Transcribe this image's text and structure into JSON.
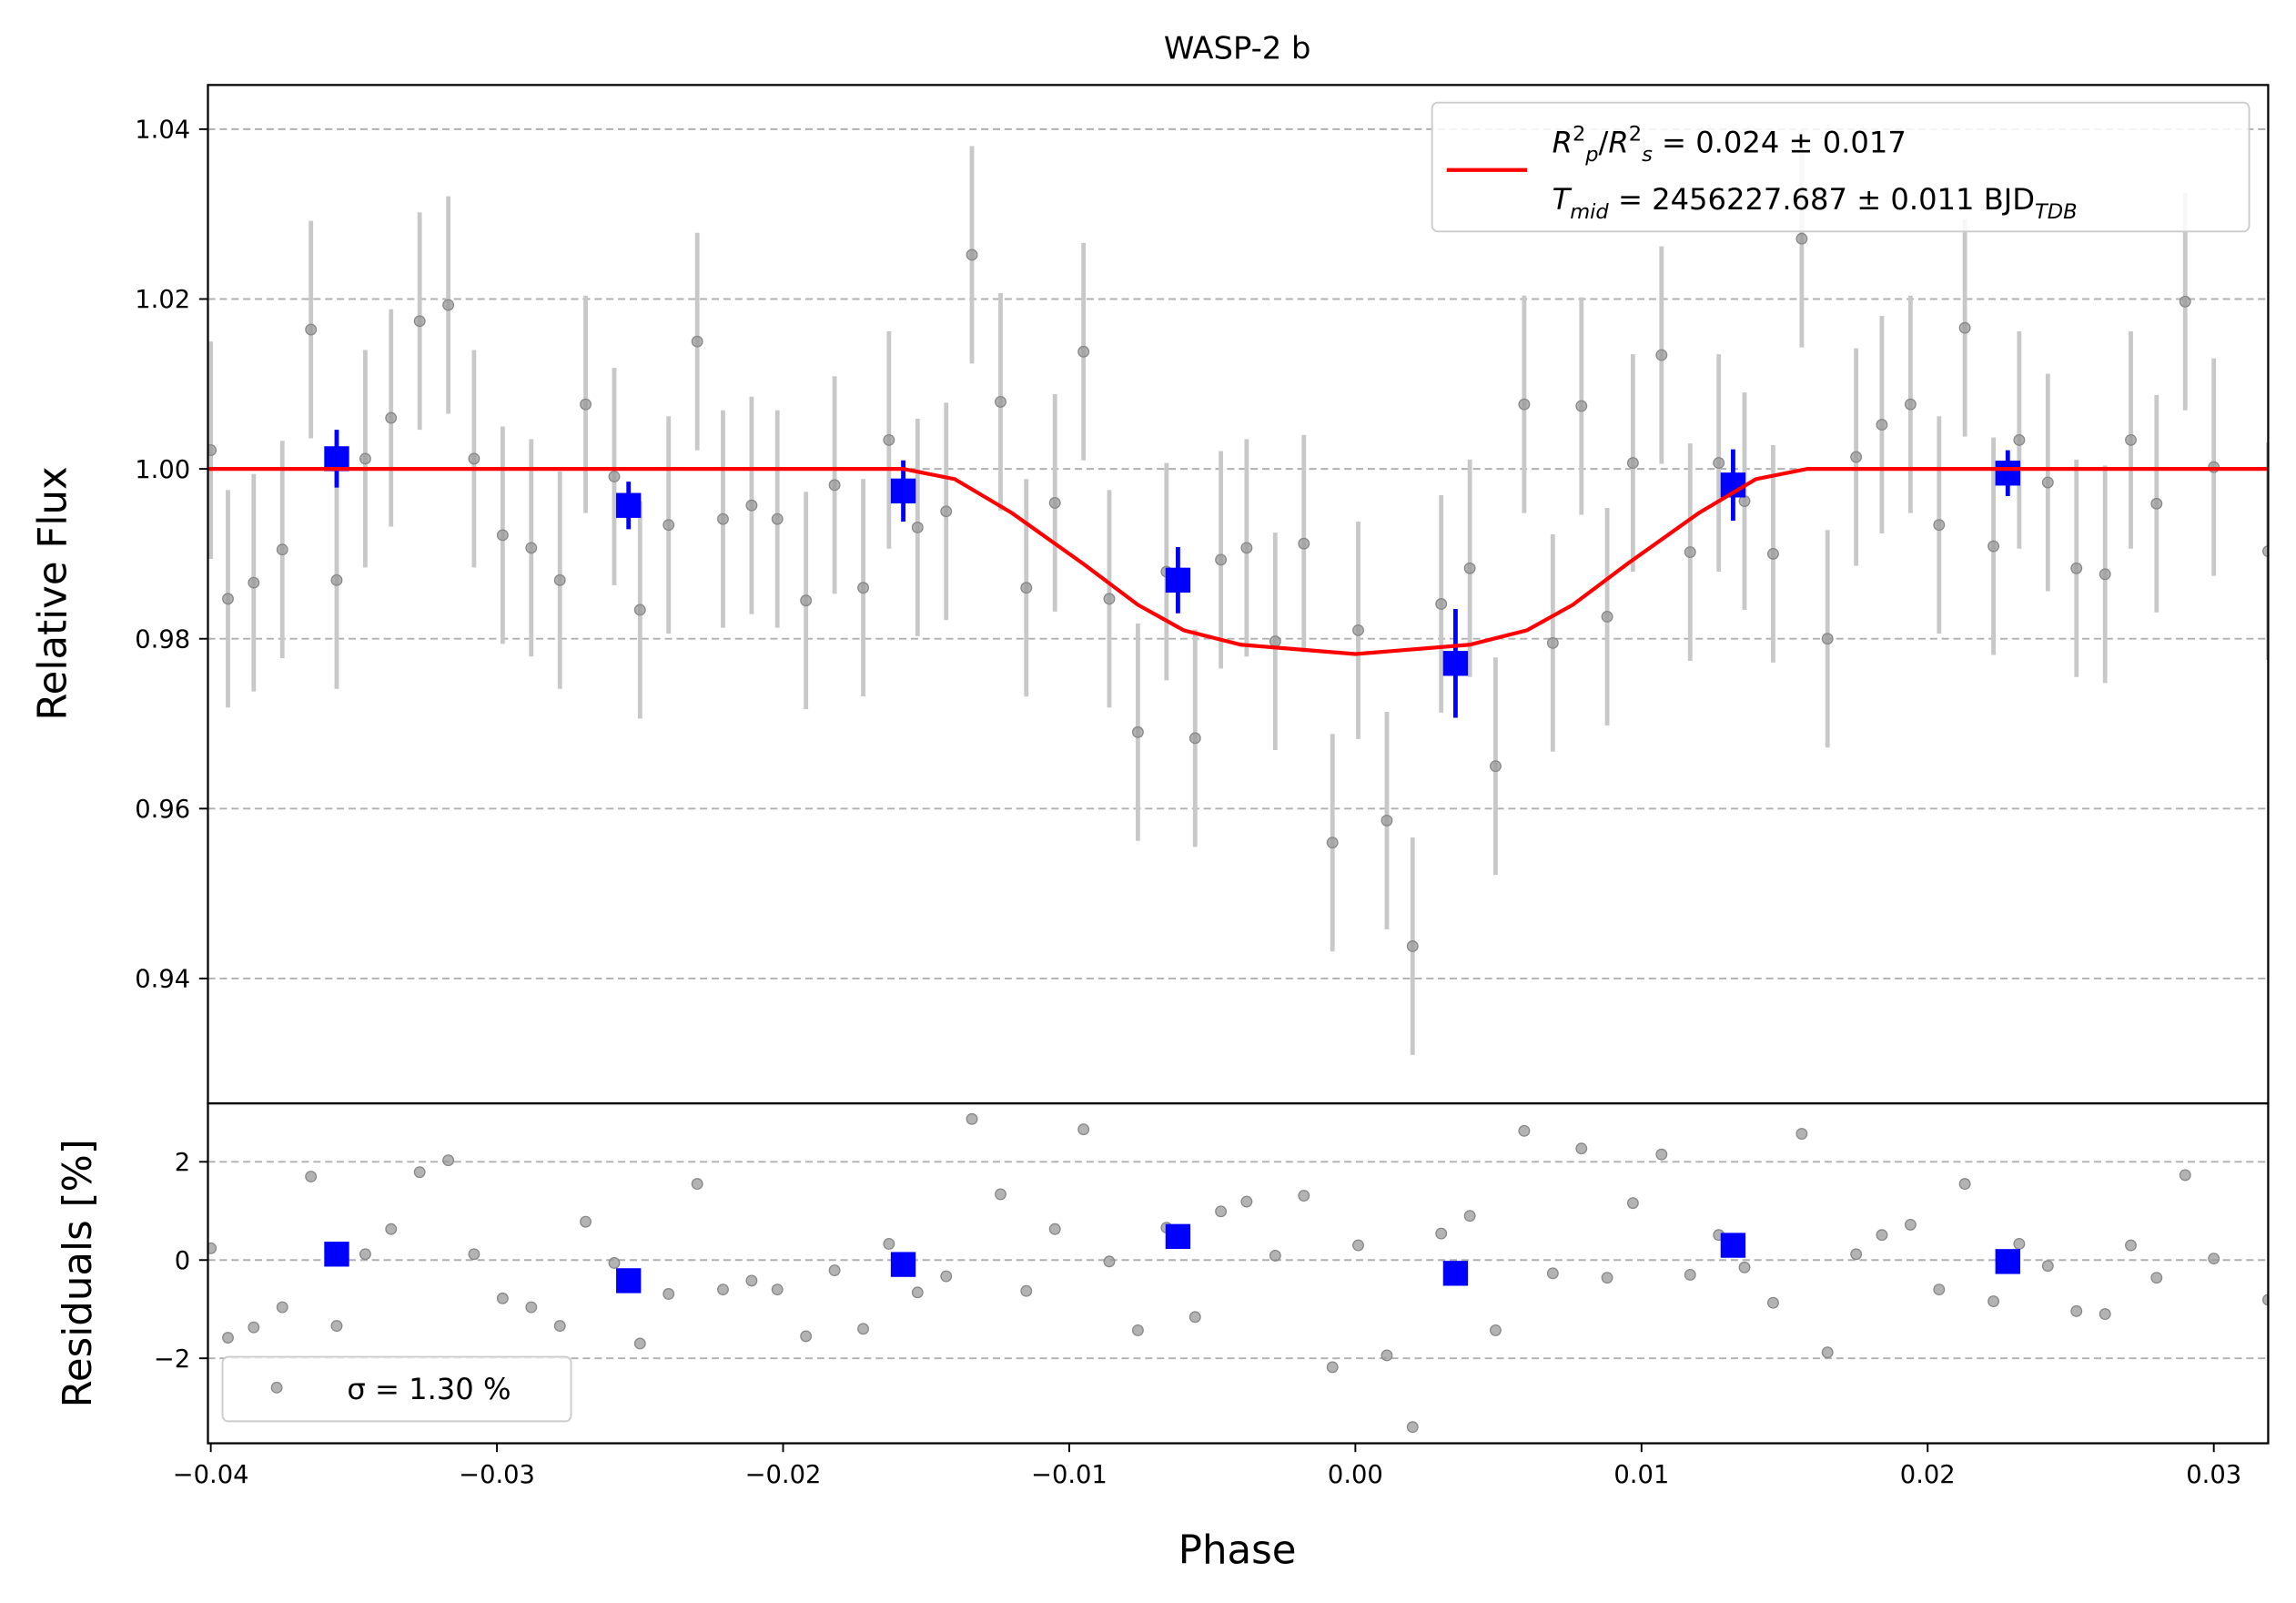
{
  "chart_data": [
    {
      "type": "errorbar",
      "title": "WASP-2 b",
      "ylabel": "Relative Flux",
      "xlim": [
        -0.0401,
        0.0319
      ],
      "ylim": [
        0.9253,
        1.0452
      ],
      "yticks": [
        1.04,
        1.02,
        {
          "value": 1.0,
          "label": "1.00"
        },
        0.98,
        0.96,
        0.94
      ],
      "grid": true,
      "legend_loc": "upper right",
      "legend": [
        [
          {
            "text": "R",
            "italic": true
          },
          {
            "text": "2",
            "pos": "sup"
          },
          {
            "text": "p",
            "pos": "sub",
            "italic": true
          },
          {
            "text": "/"
          },
          {
            "text": "R",
            "italic": true
          },
          {
            "text": "2",
            "pos": "sup"
          },
          {
            "text": "s",
            "pos": "sub",
            "italic": true
          },
          {
            "text": " = 0.024 ± 0.017"
          }
        ],
        [
          {
            "text": "T",
            "italic": true
          },
          {
            "text": "mid",
            "pos": "sub",
            "italic": true
          },
          {
            "text": " = 2456227.687 ± 0.011 BJD"
          },
          {
            "text": "TDB",
            "pos": "sub",
            "italic": true
          }
        ]
      ],
      "series": [
        {
          "kind": "points",
          "color": "#999999",
          "error_color": "#c8c8c8",
          "error": 0.0128,
          "x": [
            -0.04,
            -0.0394,
            -0.0385,
            -0.0375,
            -0.0365,
            -0.0356,
            -0.0346,
            -0.0337,
            -0.0327,
            -0.0317,
            -0.0308,
            -0.0298,
            -0.0288,
            -0.0278,
            -0.0269,
            -0.0259,
            -0.025,
            -0.024,
            -0.023,
            -0.0221,
            -0.0211,
            -0.0202,
            -0.0192,
            -0.0182,
            -0.0172,
            -0.0163,
            -0.0153,
            -0.0143,
            -0.0134,
            -0.0124,
            -0.0115,
            -0.0105,
            -0.0095,
            -0.0086,
            -0.0076,
            -0.0066,
            -0.0056,
            -0.0047,
            -0.0038,
            -0.0028,
            -0.0018,
            -0.0008,
            0.0001,
            0.0011,
            0.002,
            0.003,
            0.004,
            0.0049,
            0.0059,
            0.0069,
            0.0079,
            0.0088,
            0.0097,
            0.0107,
            0.0117,
            0.0127,
            0.0136,
            0.0146,
            0.0156,
            0.0165,
            0.0175,
            0.0184,
            0.0194,
            0.0204,
            0.0213,
            0.0223,
            0.0232,
            0.0242,
            0.0252,
            0.0262,
            0.0271,
            0.028,
            0.029,
            0.03,
            0.0319
          ],
          "values": [
            1.0022,
            0.9847,
            0.9866,
            0.9905,
            1.0164,
            0.9869,
            1.0012,
            1.006,
            1.0174,
            1.0193,
            1.0012,
            0.9922,
            0.9907,
            0.9869,
            1.0076,
            0.9991,
            0.9834,
            0.9934,
            1.015,
            0.9941,
            0.9957,
            0.9941,
            0.9845,
            0.9981,
            0.986,
            1.0034,
            0.9931,
            0.995,
            1.0252,
            1.0079,
            0.986,
            0.996,
            1.0138,
            0.9847,
            0.969,
            0.9879,
            0.9683,
            0.9893,
            0.9907,
            0.9797,
            0.9912,
            0.956,
            0.981,
            0.9586,
            0.9438,
            0.9841,
            0.9883,
            0.965,
            1.0076,
            0.9795,
            1.0074,
            0.9826,
            1.0007,
            1.0134,
            0.9902,
            1.0007,
            0.9962,
            0.99,
            1.0271,
            0.98,
            1.0014,
            1.0052,
            1.0076,
            0.9934,
            1.0166,
            0.9909,
            1.0034,
            0.9984,
            0.9883,
            0.9876,
            1.0034,
            0.9959,
            1.0197,
            1.0002,
            0.9903
          ]
        },
        {
          "kind": "binned",
          "color": "#0000ff",
          "x": [
            -0.0356,
            -0.0254,
            -0.0158,
            -0.0062,
            0.0035,
            0.0132,
            0.0228
          ],
          "values": [
            1.0012,
            0.9957,
            0.9974,
            0.9869,
            0.9771,
            0.9981,
            0.9995
          ],
          "errors": [
            0.0034,
            0.0028,
            0.0036,
            0.0039,
            0.0064,
            0.0042,
            0.0027
          ]
        },
        {
          "kind": "line",
          "color": "#ff0000",
          "x": [
            -0.0401,
            -0.0158,
            -0.014,
            -0.012,
            -0.0095,
            -0.0076,
            -0.006,
            -0.004,
            0,
            0.004,
            0.006,
            0.0076,
            0.0095,
            0.012,
            0.014,
            0.0158,
            0.0319
          ],
          "values": [
            1,
            1,
            0.9988,
            0.9948,
            0.9888,
            0.984,
            0.981,
            0.9793,
            0.9782,
            0.9793,
            0.981,
            0.984,
            0.9888,
            0.9948,
            0.9988,
            1,
            1
          ]
        }
      ]
    },
    {
      "type": "errorbar",
      "ylabel": "Residuals [%]",
      "xlabel": "Phase",
      "xlim": [
        -0.0401,
        0.0319
      ],
      "ylim": [
        -3.73,
        3.19
      ],
      "xticks": [
        {
          "value": -0.04,
          "label": "−0.04"
        },
        {
          "value": -0.03,
          "label": "−0.03"
        },
        {
          "value": -0.02,
          "label": "−0.02"
        },
        {
          "value": -0.01,
          "label": "−0.01"
        },
        {
          "value": 0,
          "label": "0.00"
        },
        0.01,
        0.02,
        0.03
      ],
      "yticks": [
        2,
        0,
        {
          "value": -2,
          "label": "−2"
        }
      ],
      "grid": true,
      "legend_loc": "lower left",
      "series": [
        {
          "kind": "points",
          "name": "σ = 1.30 %",
          "color": "#999999",
          "x": [
            -0.04,
            -0.0394,
            -0.0385,
            -0.0375,
            -0.0365,
            -0.0356,
            -0.0346,
            -0.0337,
            -0.0327,
            -0.0317,
            -0.0308,
            -0.0298,
            -0.0288,
            -0.0278,
            -0.0269,
            -0.0259,
            -0.025,
            -0.024,
            -0.023,
            -0.0221,
            -0.0211,
            -0.0202,
            -0.0192,
            -0.0182,
            -0.0172,
            -0.0163,
            -0.0153,
            -0.0143,
            -0.0134,
            -0.0124,
            -0.0115,
            -0.0105,
            -0.0095,
            -0.0086,
            -0.0076,
            -0.0066,
            -0.0056,
            -0.0047,
            -0.0038,
            -0.0028,
            -0.0018,
            -0.0008,
            0.0001,
            0.0011,
            0.002,
            0.003,
            0.004,
            0.0049,
            0.0059,
            0.0069,
            0.0079,
            0.0088,
            0.0097,
            0.0107,
            0.0117,
            0.0127,
            0.0136,
            0.0146,
            0.0156,
            0.0165,
            0.0175,
            0.0184,
            0.0194,
            0.0204,
            0.0213,
            0.0223,
            0.0232,
            0.0242,
            0.0252,
            0.0262,
            0.0271,
            0.028,
            0.029,
            0.03,
            0.0319
          ],
          "values": [
            0.24,
            -1.58,
            -1.37,
            -0.96,
            1.7,
            -1.34,
            0.12,
            0.63,
            1.79,
            2.03,
            0.12,
            -0.78,
            -0.96,
            -1.34,
            0.78,
            -0.06,
            -1.7,
            -0.69,
            1.55,
            -0.6,
            -0.42,
            -0.6,
            -1.55,
            -0.21,
            -1.4,
            0.33,
            -0.66,
            -0.33,
            2.87,
            1.34,
            -0.63,
            0.63,
            2.66,
            -0.03,
            -1.43,
            0.66,
            -1.16,
            0.99,
            1.19,
            0.09,
            1.31,
            -2.18,
            0.3,
            -1.94,
            -3.4,
            0.54,
            0.9,
            -1.43,
            2.63,
            -0.27,
            2.27,
            -0.36,
            1.16,
            2.15,
            -0.3,
            0.51,
            -0.15,
            -0.87,
            2.57,
            -1.88,
            0.12,
            0.51,
            0.72,
            -0.6,
            1.55,
            -0.84,
            0.33,
            -0.12,
            -1.04,
            -1.1,
            0.3,
            -0.36,
            1.73,
            0.03,
            -0.81
          ]
        },
        {
          "kind": "binned",
          "color": "#0000ff",
          "x": [
            -0.0356,
            -0.0254,
            -0.0158,
            -0.0062,
            0.0035,
            0.0132,
            0.0228
          ],
          "values": [
            0.12,
            -0.42,
            -0.09,
            0.48,
            -0.27,
            0.3,
            -0.03
          ]
        }
      ]
    }
  ]
}
